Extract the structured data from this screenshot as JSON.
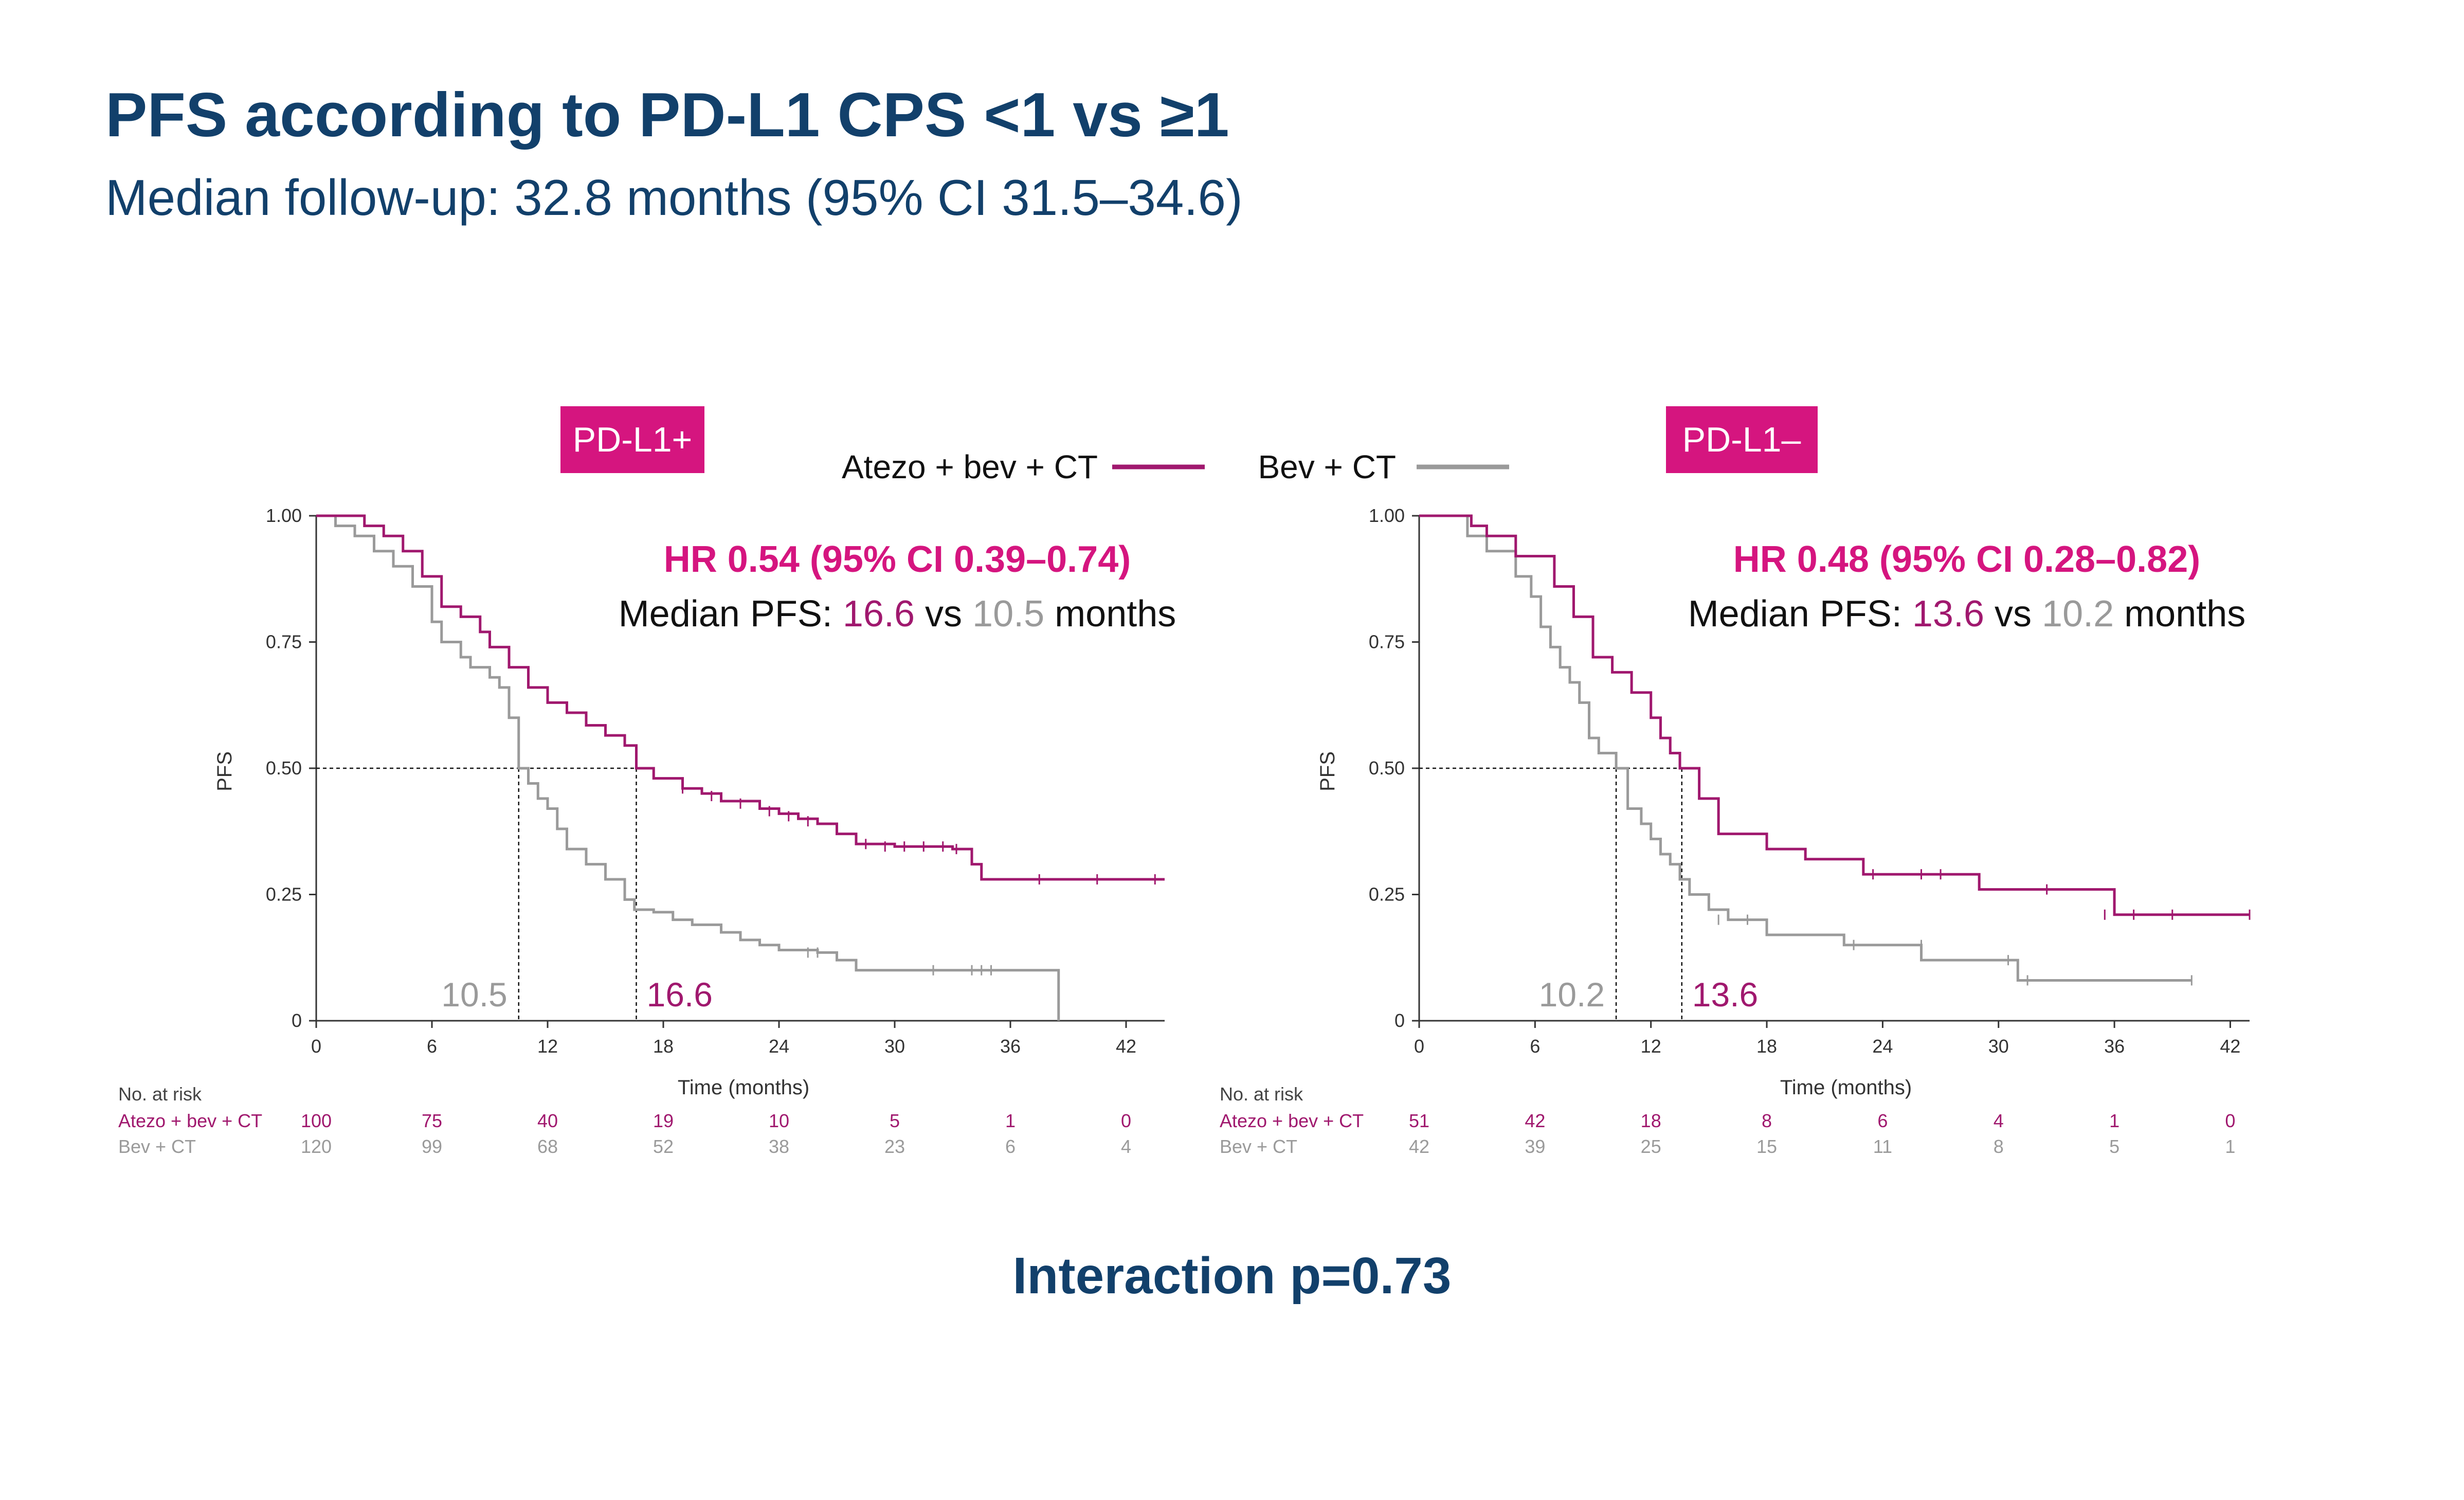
{
  "title": "PFS according to PD-L1 CPS <1 vs ≥1",
  "subtitle": "Median follow-up: 32.8 months (95% CI 31.5–34.6)",
  "interaction": "Interaction p=0.73",
  "colors": {
    "atezo": "#a0186e",
    "bev": "#9a9a9a",
    "badge": "#d5157f",
    "hr_text": "#d5157f",
    "title": "#12406b"
  },
  "legend": {
    "atezo_label": "Atezo + bev + CT",
    "bev_label": "Bev + CT"
  },
  "chart_data": [
    {
      "type": "line",
      "name": "kaplan-meier-pdl1-positive",
      "badge": "PD-L1+",
      "xlabel": "Time (months)",
      "ylabel": "PFS",
      "xlim": [
        0,
        44
      ],
      "ylim": [
        0,
        1
      ],
      "x_ticks": [
        "0",
        "6",
        "12",
        "18",
        "24",
        "30",
        "36",
        "42"
      ],
      "y_ticks": [
        "0",
        "0.25",
        "0.50",
        "0.75",
        "1.00"
      ],
      "hr_text": "HR 0.54 (95% CI 0.39–0.74)",
      "median_prefix": "Median PFS: ",
      "median_atezo": "16.6",
      "median_vs": " vs ",
      "median_bev": "10.5",
      "median_suffix": " months",
      "median_atezo_x": 16.6,
      "median_bev_x": 10.5,
      "series": [
        {
          "name": "Atezo + bev + CT",
          "points": [
            [
              0,
              1
            ],
            [
              2.5,
              0.98
            ],
            [
              3.5,
              0.96
            ],
            [
              4.5,
              0.93
            ],
            [
              5.5,
              0.88
            ],
            [
              6.5,
              0.82
            ],
            [
              7.5,
              0.8
            ],
            [
              8.5,
              0.77
            ],
            [
              9,
              0.74
            ],
            [
              10,
              0.7
            ],
            [
              11,
              0.66
            ],
            [
              12,
              0.63
            ],
            [
              13,
              0.61
            ],
            [
              14,
              0.585
            ],
            [
              15,
              0.565
            ],
            [
              16,
              0.545
            ],
            [
              16.6,
              0.5
            ],
            [
              17.5,
              0.48
            ],
            [
              19,
              0.46
            ],
            [
              20,
              0.45
            ],
            [
              21,
              0.435
            ],
            [
              23,
              0.42
            ],
            [
              24,
              0.41
            ],
            [
              25,
              0.4
            ],
            [
              26,
              0.39
            ],
            [
              27,
              0.37
            ],
            [
              28,
              0.35
            ],
            [
              30,
              0.345
            ],
            [
              33,
              0.34
            ],
            [
              34,
              0.31
            ],
            [
              34.5,
              0.28
            ],
            [
              44,
              0.28
            ]
          ],
          "censor": [
            [
              19,
              0.46
            ],
            [
              20.5,
              0.445
            ],
            [
              22,
              0.43
            ],
            [
              23.5,
              0.415
            ],
            [
              24.5,
              0.405
            ],
            [
              25.5,
              0.395
            ],
            [
              28.5,
              0.35
            ],
            [
              29.5,
              0.345
            ],
            [
              30.5,
              0.345
            ],
            [
              31.5,
              0.345
            ],
            [
              32.5,
              0.345
            ],
            [
              33.2,
              0.34
            ],
            [
              37.5,
              0.28
            ],
            [
              40.5,
              0.28
            ],
            [
              43.5,
              0.28
            ]
          ]
        },
        {
          "name": "Bev + CT",
          "points": [
            [
              0,
              1
            ],
            [
              1,
              0.98
            ],
            [
              2,
              0.96
            ],
            [
              3,
              0.93
            ],
            [
              4,
              0.9
            ],
            [
              5,
              0.86
            ],
            [
              6,
              0.79
            ],
            [
              6.5,
              0.75
            ],
            [
              7.5,
              0.72
            ],
            [
              8,
              0.7
            ],
            [
              9,
              0.68
            ],
            [
              9.5,
              0.66
            ],
            [
              10,
              0.6
            ],
            [
              10.5,
              0.5
            ],
            [
              11,
              0.47
            ],
            [
              11.5,
              0.44
            ],
            [
              12,
              0.42
            ],
            [
              12.5,
              0.38
            ],
            [
              13,
              0.34
            ],
            [
              14,
              0.31
            ],
            [
              15,
              0.28
            ],
            [
              16,
              0.24
            ],
            [
              16.5,
              0.22
            ],
            [
              17.5,
              0.215
            ],
            [
              18.5,
              0.2
            ],
            [
              19.5,
              0.19
            ],
            [
              21,
              0.175
            ],
            [
              22,
              0.16
            ],
            [
              23,
              0.15
            ],
            [
              24,
              0.14
            ],
            [
              26,
              0.135
            ],
            [
              27,
              0.12
            ],
            [
              28,
              0.1
            ],
            [
              38.5,
              0.1
            ],
            [
              38.5,
              0
            ]
          ],
          "censor": [
            [
              25.5,
              0.135
            ],
            [
              26,
              0.135
            ],
            [
              32,
              0.1
            ],
            [
              34,
              0.1
            ],
            [
              34.5,
              0.1
            ],
            [
              35,
              0.1
            ]
          ]
        }
      ],
      "risk_header": "No. at risk",
      "risk_table": [
        {
          "name": "Atezo + bev + CT",
          "values": [
            "100",
            "75",
            "40",
            "19",
            "10",
            "5",
            "1",
            "0"
          ]
        },
        {
          "name": "Bev + CT",
          "values": [
            "120",
            "99",
            "68",
            "52",
            "38",
            "23",
            "6",
            "4"
          ]
        }
      ]
    },
    {
      "type": "line",
      "name": "kaplan-meier-pdl1-negative",
      "badge": "PD-L1–",
      "xlabel": "Time (months)",
      "ylabel": "PFS",
      "xlim": [
        0,
        43
      ],
      "ylim": [
        0,
        1
      ],
      "x_ticks": [
        "0",
        "6",
        "12",
        "18",
        "24",
        "30",
        "36",
        "42"
      ],
      "y_ticks": [
        "0",
        "0.25",
        "0.50",
        "0.75",
        "1.00"
      ],
      "hr_text": "HR 0.48 (95% CI 0.28–0.82)",
      "median_prefix": "Median PFS: ",
      "median_atezo": "13.6",
      "median_vs": " vs ",
      "median_bev": "10.2",
      "median_suffix": " months",
      "median_atezo_x": 13.6,
      "median_bev_x": 10.2,
      "series": [
        {
          "name": "Atezo + bev + CT",
          "points": [
            [
              0,
              1
            ],
            [
              2.7,
              1
            ],
            [
              2.7,
              0.98
            ],
            [
              3.5,
              0.96
            ],
            [
              5,
              0.92
            ],
            [
              7,
              0.86
            ],
            [
              8,
              0.8
            ],
            [
              9,
              0.72
            ],
            [
              10,
              0.69
            ],
            [
              11,
              0.65
            ],
            [
              12,
              0.6
            ],
            [
              12.5,
              0.56
            ],
            [
              13,
              0.53
            ],
            [
              13.5,
              0.5
            ],
            [
              14.5,
              0.44
            ],
            [
              15.5,
              0.37
            ],
            [
              18,
              0.34
            ],
            [
              20,
              0.32
            ],
            [
              23,
              0.29
            ],
            [
              29,
              0.26
            ],
            [
              36,
              0.21
            ],
            [
              43,
              0.21
            ]
          ],
          "censor": [
            [
              23.5,
              0.29
            ],
            [
              26,
              0.29
            ],
            [
              27,
              0.29
            ],
            [
              32.5,
              0.26
            ],
            [
              35.5,
              0.21
            ],
            [
              37,
              0.21
            ],
            [
              39,
              0.21
            ],
            [
              43,
              0.21
            ]
          ]
        },
        {
          "name": "Bev + CT",
          "points": [
            [
              0,
              1
            ],
            [
              2.5,
              0.96
            ],
            [
              3.5,
              0.93
            ],
            [
              5,
              0.88
            ],
            [
              5.8,
              0.84
            ],
            [
              6.3,
              0.78
            ],
            [
              6.8,
              0.74
            ],
            [
              7.3,
              0.7
            ],
            [
              7.8,
              0.67
            ],
            [
              8.3,
              0.63
            ],
            [
              8.8,
              0.56
            ],
            [
              9.3,
              0.53
            ],
            [
              10,
              0.53
            ],
            [
              10.2,
              0.5
            ],
            [
              10.8,
              0.42
            ],
            [
              11.5,
              0.39
            ],
            [
              12,
              0.36
            ],
            [
              12.5,
              0.33
            ],
            [
              13,
              0.31
            ],
            [
              13.5,
              0.28
            ],
            [
              14,
              0.25
            ],
            [
              15,
              0.22
            ],
            [
              16,
              0.2
            ],
            [
              18,
              0.17
            ],
            [
              22,
              0.15
            ],
            [
              26,
              0.12
            ],
            [
              31,
              0.08
            ],
            [
              40,
              0.08
            ]
          ],
          "censor": [
            [
              15.5,
              0.2
            ],
            [
              17,
              0.2
            ],
            [
              22.5,
              0.15
            ],
            [
              26,
              0.15
            ],
            [
              30.5,
              0.12
            ],
            [
              31.5,
              0.08
            ],
            [
              40,
              0.08
            ]
          ]
        }
      ],
      "risk_header": "No. at risk",
      "risk_table": [
        {
          "name": "Atezo + bev + CT",
          "values": [
            "51",
            "42",
            "18",
            "8",
            "6",
            "4",
            "1",
            "0"
          ]
        },
        {
          "name": "Bev + CT",
          "values": [
            "42",
            "39",
            "25",
            "15",
            "11",
            "8",
            "5",
            "1"
          ]
        }
      ]
    }
  ]
}
